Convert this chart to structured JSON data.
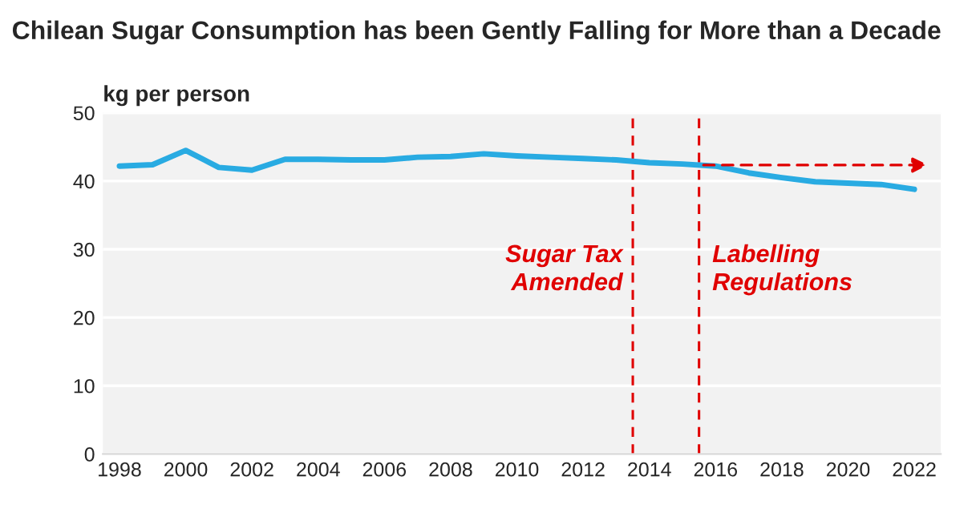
{
  "chart_data": {
    "type": "line",
    "title": "Chilean Sugar Consumption has been Gently Falling for More than a Decade",
    "ylabel": "kg per person",
    "x": [
      1998,
      1999,
      2000,
      2001,
      2002,
      2003,
      2004,
      2005,
      2006,
      2007,
      2008,
      2009,
      2010,
      2011,
      2012,
      2013,
      2014,
      2015,
      2016,
      2017,
      2018,
      2019,
      2020,
      2021,
      2022
    ],
    "series": [
      {
        "color": "#29abe2",
        "values": [
          42.2,
          42.4,
          44.5,
          42.0,
          41.6,
          43.2,
          43.2,
          43.1,
          43.1,
          43.5,
          43.6,
          44.0,
          43.7,
          43.5,
          43.3,
          43.1,
          42.7,
          42.5,
          42.2,
          41.2,
          40.5,
          39.9,
          39.7,
          39.5,
          38.8
        ]
      }
    ],
    "ref_lines": [
      {
        "axis": "x",
        "value": 2013.5,
        "label": "Sugar Tax\nAmended",
        "color": "#e00000",
        "line_style": "dashed"
      },
      {
        "axis": "x",
        "value": 2015.5,
        "label": "Labelling\nRegulations",
        "color": "#e00000",
        "line_style": "dashed"
      }
    ],
    "xlim": [
      1997.5,
      2022.8
    ],
    "xticks": [
      1998,
      2000,
      2002,
      2004,
      2006,
      2008,
      2010,
      2012,
      2014,
      2016,
      2018,
      2020,
      2022
    ],
    "ylim": [
      0,
      50
    ],
    "yticks": [
      0,
      10,
      20,
      30,
      40,
      50
    ],
    "grid": "y",
    "line_style": "solid",
    "marker": "none"
  }
}
